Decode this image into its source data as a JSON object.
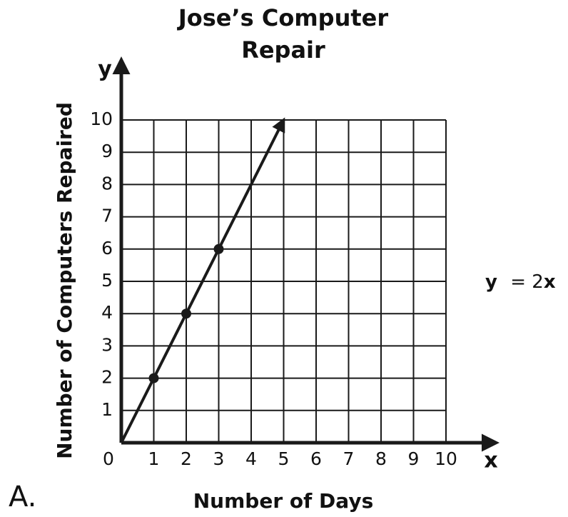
{
  "chart_data": {
    "type": "line",
    "title_lines": [
      "Jose’s Computer",
      "Repair"
    ],
    "x_label": "Number of Days",
    "y_label": "Number of Computers Repaired",
    "x_axis_letter": "x",
    "y_axis_letter": "y",
    "choice_label": "A.",
    "equation_parts": [
      "y",
      "= 2",
      "x"
    ],
    "xlim": [
      0,
      10
    ],
    "ylim": [
      0,
      10
    ],
    "xticks": [
      0,
      1,
      2,
      3,
      4,
      5,
      6,
      7,
      8,
      9,
      10
    ],
    "yticks": [
      0,
      1,
      2,
      3,
      4,
      5,
      6,
      7,
      8,
      9,
      10
    ],
    "grid": true,
    "color": "#1a1a1a",
    "line": {
      "x": [
        0,
        5
      ],
      "values": [
        0,
        10
      ]
    },
    "points": {
      "x": [
        1,
        2,
        3
      ],
      "values": [
        2,
        4,
        6
      ]
    }
  }
}
